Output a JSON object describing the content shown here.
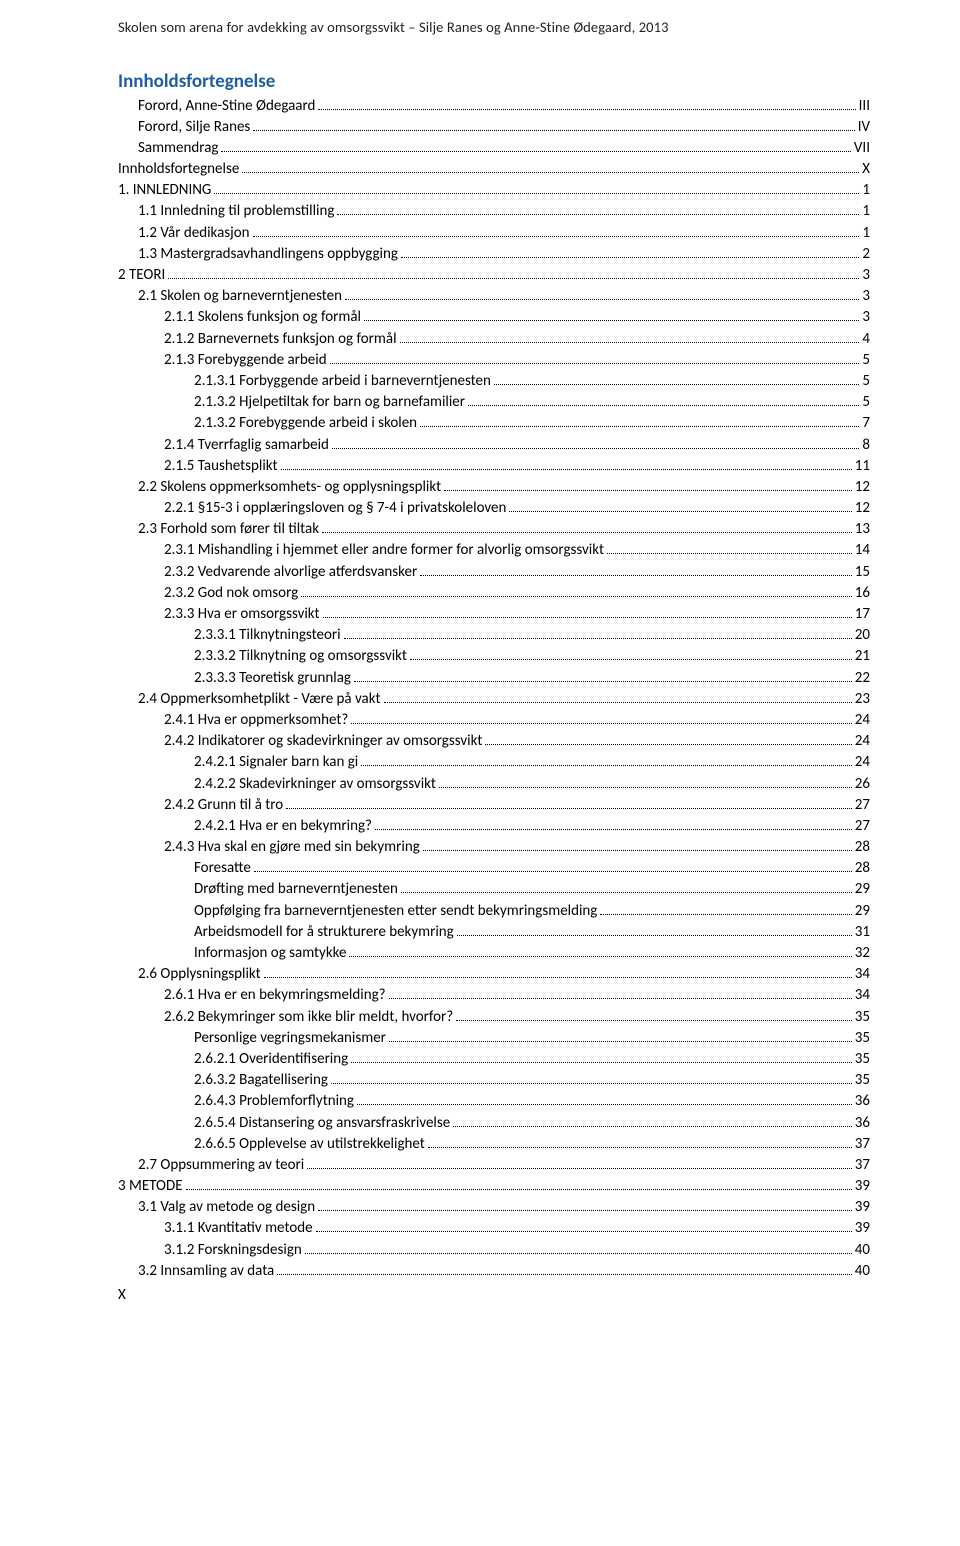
{
  "header": "Skolen som arena for avdekking av omsorgssvikt – Silje Ranes og Anne-Stine Ødegaard, 2013",
  "toc_title": "Innholdsfortegnelse",
  "page_number": "X",
  "colors": {
    "title": "#1f5e9e",
    "text": "#000000",
    "header_text": "#222222",
    "background": "#ffffff"
  },
  "entries": [
    {
      "level": 1,
      "label": "Forord, Anne-Stine Ødegaard",
      "page": "III"
    },
    {
      "level": 1,
      "label": "Forord, Silje Ranes",
      "page": "IV"
    },
    {
      "level": 1,
      "label": "Sammendrag",
      "page": "VII"
    },
    {
      "level": 0,
      "label": "Innholdsfortegnelse",
      "page": "X"
    },
    {
      "level": 0,
      "label": "1. INNLEDNING",
      "page": "1"
    },
    {
      "level": 1,
      "label": "1.1    Innledning til problemstilling",
      "page": "1"
    },
    {
      "level": 1,
      "label": "1.2 Vår dedikasjon",
      "page": "1"
    },
    {
      "level": 1,
      "label": "1.3 Mastergradsavhandlingens oppbygging",
      "page": "2"
    },
    {
      "level": 0,
      "label": "2 TEORI",
      "page": "3"
    },
    {
      "level": 1,
      "label": "2.1 Skolen og barneverntjenesten",
      "page": "3"
    },
    {
      "level": 2,
      "label": "2.1.1 Skolens funksjon og formål",
      "page": "3"
    },
    {
      "level": 2,
      "label": "2.1.2 Barnevernets funksjon og formål",
      "page": "4"
    },
    {
      "level": 2,
      "label": "2.1.3 Forebyggende arbeid",
      "page": "5"
    },
    {
      "level": 3,
      "label": "2.1.3.1 Forbyggende arbeid i barneverntjenesten",
      "page": "5"
    },
    {
      "level": 3,
      "label": "2.1.3.2 Hjelpetiltak for barn og barnefamilier",
      "page": "5"
    },
    {
      "level": 3,
      "label": "2.1.3.2 Forebyggende arbeid i skolen",
      "page": "7"
    },
    {
      "level": 2,
      "label": "2.1.4 Tverrfaglig samarbeid",
      "page": "8"
    },
    {
      "level": 2,
      "label": "2.1.5 Taushetsplikt",
      "page": "11"
    },
    {
      "level": 1,
      "label": "2.2 Skolens oppmerksomhets- og opplysningsplikt",
      "page": "12"
    },
    {
      "level": 2,
      "label": "2.2.1 §15-3 i opplæringsloven og § 7-4 i privatskoleloven",
      "page": "12"
    },
    {
      "level": 1,
      "label": "2.3 Forhold som fører til tiltak",
      "page": "13"
    },
    {
      "level": 2,
      "label": "2.3.1 Mishandling i hjemmet eller andre former for alvorlig omsorgssvikt",
      "page": "14"
    },
    {
      "level": 2,
      "label": "2.3.2 Vedvarende alvorlige atferdsvansker",
      "page": "15"
    },
    {
      "level": 2,
      "label": "2.3.2 God nok omsorg",
      "page": "16"
    },
    {
      "level": 2,
      "label": "2.3.3 Hva er omsorgssvikt",
      "page": "17"
    },
    {
      "level": 3,
      "label": "2.3.3.1 Tilknytningsteori",
      "page": "20"
    },
    {
      "level": 3,
      "label": "2.3.3.2 Tilknytning og omsorgssvikt",
      "page": "21"
    },
    {
      "level": 3,
      "label": "2.3.3.3 Teoretisk grunnlag",
      "page": "22"
    },
    {
      "level": 1,
      "label": "2.4  Oppmerksomhetplikt - Være på vakt",
      "page": "23"
    },
    {
      "level": 2,
      "label": "2.4.1 Hva er oppmerksomhet?",
      "page": "24"
    },
    {
      "level": 2,
      "label": "2.4.2 Indikatorer og skadevirkninger av omsorgssvikt",
      "page": "24"
    },
    {
      "level": 3,
      "label": "2.4.2.1 Signaler barn kan gi",
      "page": "24"
    },
    {
      "level": 3,
      "label": "2.4.2.2 Skadevirkninger av omsorgssvikt",
      "page": "26"
    },
    {
      "level": 2,
      "label": "2.4.2 Grunn til å tro",
      "page": "27"
    },
    {
      "level": 3,
      "label": "2.4.2.1 Hva er en bekymring?",
      "page": "27"
    },
    {
      "level": 2,
      "label": "2.4.3 Hva skal en gjøre med sin bekymring",
      "page": "28"
    },
    {
      "level": 3,
      "label": "Foresatte",
      "page": "28"
    },
    {
      "level": 3,
      "label": "Drøfting med barneverntjenesten",
      "page": "29"
    },
    {
      "level": 3,
      "label": "Oppfølging fra barneverntjenesten etter sendt bekymringsmelding",
      "page": "29"
    },
    {
      "level": 3,
      "label": "Arbeidsmodell for å strukturere bekymring",
      "page": "31"
    },
    {
      "level": 3,
      "label": "Informasjon og samtykke",
      "page": "32"
    },
    {
      "level": 1,
      "label": "2.6 Opplysningsplikt",
      "page": "34"
    },
    {
      "level": 2,
      "label": "2.6.1 Hva er en bekymringsmelding?",
      "page": "34"
    },
    {
      "level": 2,
      "label": "2.6.2 Bekymringer som ikke blir meldt, hvorfor?",
      "page": "35"
    },
    {
      "level": 3,
      "label": "Personlige vegringsmekanismer",
      "page": "35"
    },
    {
      "level": 3,
      "label": "2.6.2.1  Overidentifisering",
      "page": "35"
    },
    {
      "level": 3,
      "label": "2.6.3.2  Bagatellisering",
      "page": "35"
    },
    {
      "level": 3,
      "label": "2.6.4.3  Problemforflytning",
      "page": "36"
    },
    {
      "level": 3,
      "label": "2.6.5.4  Distansering og ansvarsfraskrivelse",
      "page": "36"
    },
    {
      "level": 3,
      "label": "2.6.6.5  Opplevelse av utilstrekkelighet",
      "page": "37"
    },
    {
      "level": 1,
      "label": "2.7 Oppsummering av teori",
      "page": "37"
    },
    {
      "level": 0,
      "label": "3 METODE",
      "page": "39"
    },
    {
      "level": 1,
      "label": "3.1 Valg av metode og design",
      "page": "39"
    },
    {
      "level": 2,
      "label": "3.1.1 Kvantitativ metode",
      "page": "39"
    },
    {
      "level": 2,
      "label": "3.1.2 Forskningsdesign",
      "page": "40"
    },
    {
      "level": 1,
      "label": "3.2 Innsamling av data",
      "page": "40"
    }
  ]
}
